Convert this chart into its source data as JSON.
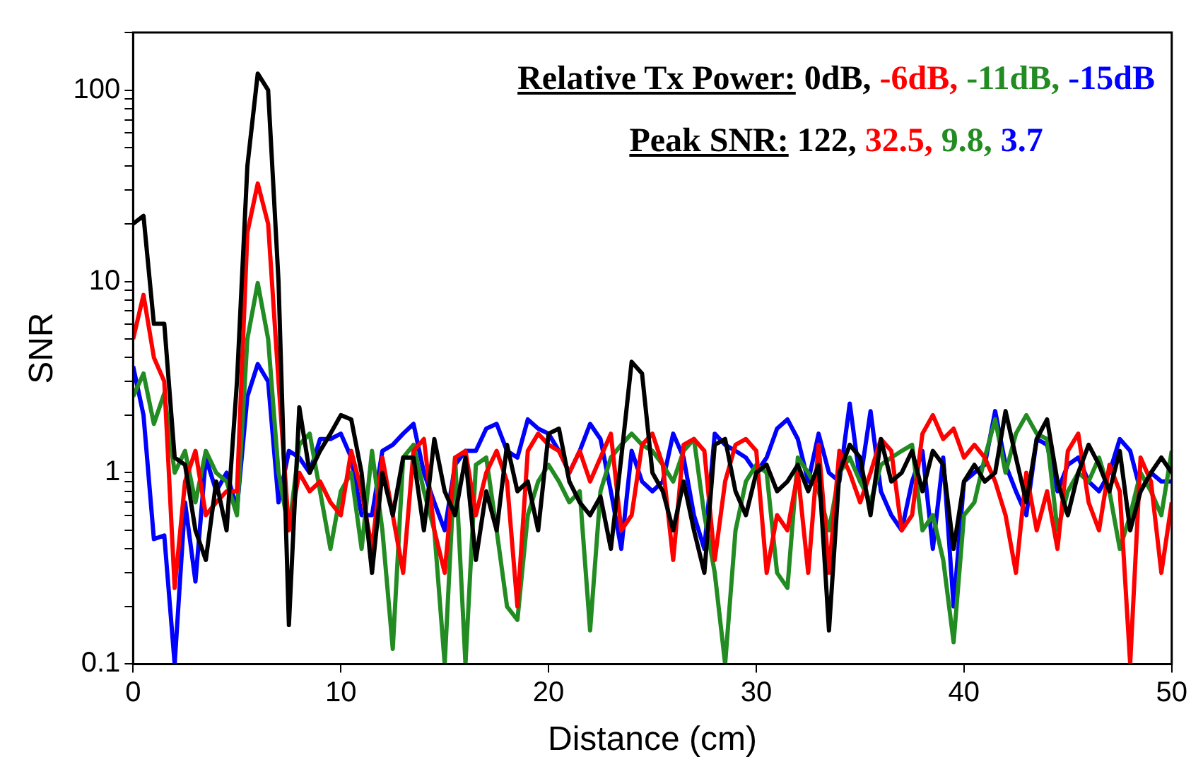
{
  "chart_data": {
    "type": "line",
    "xlabel": "Distance (cm)",
    "ylabel": "SNR",
    "legend_title": "Relative Tx Power:",
    "legend": "top right",
    "log": "y",
    "grid": false,
    "marker": "none",
    "line_style": "solid",
    "xlim": [
      0,
      50
    ],
    "xticks": [
      0,
      10,
      20,
      30,
      40,
      50
    ],
    "ylim": [
      0.1,
      200
    ],
    "yticks": [
      0.1,
      {
        "value": 0.2,
        "label": null
      },
      {
        "value": 0.3,
        "label": null
      },
      {
        "value": 0.4,
        "label": null
      },
      {
        "value": 0.5,
        "label": null
      },
      {
        "value": 0.6,
        "label": null
      },
      {
        "value": 0.7,
        "label": null
      },
      {
        "value": 0.8,
        "label": null
      },
      {
        "value": 0.9,
        "label": null
      },
      1,
      {
        "value": 2,
        "label": null
      },
      {
        "value": 3,
        "label": null
      },
      {
        "value": 4,
        "label": null
      },
      {
        "value": 5,
        "label": null
      },
      {
        "value": 6,
        "label": null
      },
      {
        "value": 7,
        "label": null
      },
      {
        "value": 8,
        "label": null
      },
      {
        "value": 9,
        "label": null
      },
      10,
      {
        "value": 20,
        "label": null
      },
      {
        "value": 30,
        "label": null
      },
      {
        "value": 40,
        "label": null
      },
      {
        "value": 50,
        "label": null
      },
      {
        "value": 60,
        "label": null
      },
      {
        "value": 70,
        "label": null
      },
      {
        "value": 80,
        "label": null
      },
      {
        "value": 90,
        "label": null
      },
      100,
      {
        "value": 200,
        "label": null
      }
    ],
    "annotations": [
      "Peak SNR:",
      "122,",
      "32.5,",
      "9.8,",
      "3.7"
    ],
    "x": [
      0,
      0.5,
      1,
      1.5,
      2,
      2.5,
      3,
      3.5,
      4,
      4.5,
      5,
      5.5,
      6,
      6.5,
      7,
      7.5,
      8,
      8.5,
      9,
      9.5,
      10,
      10.5,
      11,
      11.5,
      12,
      12.5,
      13,
      13.5,
      14,
      14.5,
      15,
      15.5,
      16,
      16.5,
      17,
      17.5,
      18,
      18.5,
      19,
      19.5,
      20,
      20.5,
      21,
      21.5,
      22,
      22.5,
      23,
      23.5,
      24,
      24.5,
      25,
      25.5,
      26,
      26.5,
      27,
      27.5,
      28,
      28.5,
      29,
      29.5,
      30,
      30.5,
      31,
      31.5,
      32,
      32.5,
      33,
      33.5,
      34,
      34.5,
      35,
      35.5,
      36,
      36.5,
      37,
      37.5,
      38,
      38.5,
      39,
      39.5,
      40,
      40.5,
      41,
      41.5,
      42,
      42.5,
      43,
      43.5,
      44,
      44.5,
      45,
      45.5,
      46,
      46.5,
      47,
      47.5,
      48,
      48.5,
      49,
      49.5,
      50
    ],
    "series": [
      {
        "name": "0dB,",
        "color": "#000000",
        "values": [
          20,
          22,
          6,
          6,
          1.2,
          1.1,
          0.5,
          0.35,
          0.9,
          0.5,
          3,
          40,
          122,
          100,
          10,
          0.16,
          2.2,
          1.0,
          1.3,
          1.6,
          2,
          1.9,
          1.0,
          0.3,
          1.0,
          0.6,
          1.2,
          1.2,
          0.5,
          1.5,
          0.8,
          0.6,
          1.2,
          0.35,
          0.8,
          0.5,
          1.4,
          0.8,
          0.9,
          0.5,
          1.6,
          1.7,
          0.9,
          0.7,
          0.6,
          0.75,
          0.4,
          1.2,
          3.8,
          3.3,
          1.0,
          0.8,
          0.5,
          0.9,
          0.5,
          0.3,
          1.4,
          1.5,
          0.8,
          0.6,
          1.0,
          1.1,
          0.8,
          0.9,
          1.1,
          0.8,
          1.1,
          0.15,
          1.0,
          1.4,
          1.2,
          0.6,
          1.5,
          0.9,
          1.0,
          1.3,
          0.8,
          1.3,
          1.1,
          0.4,
          0.9,
          1.1,
          0.9,
          1.0,
          2.1,
          1.2,
          0.7,
          1.5,
          1.9,
          0.9,
          0.6,
          1.0,
          1.4,
          1.1,
          0.8,
          1.3,
          0.5,
          0.8,
          1.0,
          1.2,
          1.0
        ]
      },
      {
        "name": "-6dB,",
        "color": "#ff0000",
        "values": [
          5,
          8.5,
          4,
          3,
          0.25,
          0.9,
          1.3,
          0.6,
          0.7,
          0.8,
          0.8,
          18,
          32.5,
          20,
          3,
          0.5,
          1.0,
          0.8,
          0.9,
          0.7,
          0.6,
          1.3,
          0.8,
          0.4,
          1.2,
          0.6,
          0.3,
          1.3,
          1.5,
          0.5,
          0.3,
          1.2,
          1.3,
          0.6,
          1.0,
          1.3,
          0.9,
          0.2,
          1.3,
          1.6,
          1.4,
          1.3,
          1.0,
          1.3,
          0.9,
          1.2,
          1.6,
          0.5,
          0.6,
          1.4,
          1.6,
          1.1,
          0.35,
          1.4,
          1.5,
          1.3,
          0.35,
          0.9,
          1.4,
          1.5,
          1.3,
          0.3,
          0.6,
          0.5,
          1.0,
          0.3,
          1.4,
          0.3,
          1.3,
          1.0,
          0.7,
          1.0,
          1.5,
          1.3,
          0.5,
          0.6,
          1.6,
          2.0,
          1.5,
          1.7,
          1.2,
          1.4,
          1.2,
          0.9,
          0.6,
          0.3,
          1.0,
          0.5,
          0.8,
          0.4,
          1.3,
          1.6,
          0.7,
          0.5,
          1.1,
          0.8,
          0.1,
          1.2,
          0.9,
          0.3,
          0.7
        ]
      },
      {
        "name": "-11dB,",
        "color": "#228b22",
        "values": [
          2.5,
          3.3,
          1.8,
          2.6,
          1.0,
          1.3,
          0.7,
          1.3,
          1.0,
          0.9,
          0.6,
          5,
          9.8,
          5,
          1.0,
          0.5,
          1.4,
          1.6,
          0.8,
          0.4,
          0.8,
          1.0,
          0.4,
          1.3,
          0.5,
          0.12,
          1.2,
          1.4,
          0.8,
          0.5,
          0.1,
          1.2,
          0.1,
          1.1,
          1.2,
          0.5,
          0.2,
          0.17,
          0.6,
          0.9,
          1.1,
          0.9,
          0.7,
          0.8,
          0.15,
          0.8,
          1.2,
          1.4,
          1.6,
          1.4,
          1.3,
          1.1,
          0.9,
          1.3,
          1.5,
          0.6,
          0.3,
          0.1,
          0.5,
          0.9,
          1.1,
          1.0,
          0.3,
          0.25,
          1.2,
          1.0,
          0.8,
          0.5,
          1.0,
          1.2,
          0.9,
          0.7,
          1.1,
          1.2,
          1.3,
          1.4,
          0.5,
          0.6,
          0.35,
          0.13,
          0.6,
          0.7,
          1.2,
          1.9,
          1.0,
          1.6,
          2.0,
          1.6,
          1.5,
          0.5,
          0.8,
          1.0,
          0.9,
          1.2,
          0.8,
          0.4,
          0.6,
          1.0,
          0.8,
          0.6,
          1.3
        ]
      },
      {
        "name": "-15dB",
        "color": "#0000ff",
        "values": [
          3.6,
          2,
          0.45,
          0.47,
          0.1,
          0.7,
          0.27,
          1.2,
          0.8,
          1.0,
          0.65,
          2.5,
          3.7,
          3,
          0.7,
          1.3,
          1.2,
          1.0,
          1.5,
          1.5,
          1.6,
          1.2,
          0.6,
          0.6,
          1.3,
          1.4,
          1.6,
          1.8,
          1.0,
          0.7,
          0.5,
          1.1,
          1.3,
          1.3,
          1.7,
          1.8,
          1.3,
          1.2,
          1.9,
          1.7,
          1.6,
          1.3,
          1.0,
          1.3,
          1.8,
          1.5,
          0.8,
          0.4,
          1.3,
          0.9,
          0.8,
          0.9,
          1.6,
          1.2,
          0.6,
          0.4,
          1.6,
          1.4,
          1.3,
          1.2,
          1.0,
          1.2,
          1.7,
          1.9,
          1.5,
          0.9,
          1.6,
          1.0,
          0.9,
          2.3,
          0.9,
          2.1,
          0.8,
          0.6,
          0.5,
          0.9,
          1.3,
          0.4,
          1.2,
          0.2,
          0.9,
          1.0,
          1.1,
          2.1,
          1.1,
          0.8,
          0.6,
          1.5,
          1.4,
          0.8,
          1.1,
          1.2,
          0.9,
          0.8,
          1.0,
          1.5,
          1.3,
          0.8,
          1.0,
          0.9,
          0.9
        ]
      }
    ]
  }
}
